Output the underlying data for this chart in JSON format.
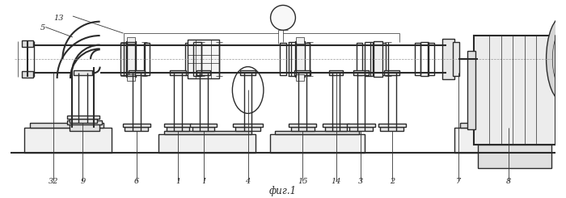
{
  "caption": "фиг.1",
  "bg_color": "#ffffff",
  "line_color": "#2a2a2a",
  "lw": 1.0,
  "lw_thin": 0.5,
  "lw_thick": 1.5
}
